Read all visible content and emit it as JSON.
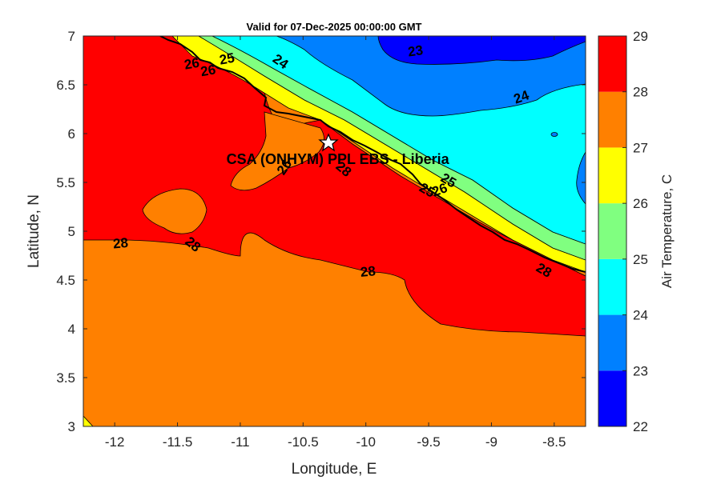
{
  "chart_data": {
    "type": "contour-map",
    "title": "Valid for 07-Dec-2025 00:00:00 GMT",
    "xlabel": "Longitude, E",
    "ylabel": "Latitude, N",
    "xlim": [
      -12.25,
      -8.25
    ],
    "ylim": [
      3,
      7
    ],
    "xticks": [
      -12,
      -11.5,
      -11,
      -10.5,
      -10,
      -9.5,
      -9,
      -8.5
    ],
    "xtick_labels": [
      "-12",
      "-11.5",
      "-11",
      "-10.5",
      "-10",
      "-9.5",
      "-9",
      "-8.5"
    ],
    "yticks": [
      3,
      3.5,
      4,
      4.5,
      5,
      5.5,
      6,
      6.5,
      7
    ],
    "ytick_labels": [
      "3",
      "3.5",
      "4",
      "4.5",
      "5",
      "5.5",
      "6",
      "6.5",
      "7"
    ],
    "colorbar": {
      "label": "Air Temperature, C",
      "levels": [
        22,
        23,
        24,
        25,
        26,
        27,
        28,
        29
      ],
      "level_labels": [
        "22",
        "23",
        "24",
        "25",
        "26",
        "27",
        "28",
        "29"
      ],
      "colors": [
        "#0000ff",
        "#0080ff",
        "#00ffff",
        "#80ff80",
        "#ffff00",
        "#ff8000",
        "#ff0000",
        "#800000"
      ]
    },
    "contour_labels": [
      {
        "text": "23",
        "lon": -9.6,
        "lat": 6.85,
        "angle": -8
      },
      {
        "text": "24",
        "lon": -10.7,
        "lat": 6.75,
        "angle": 35
      },
      {
        "text": "24",
        "lon": -8.75,
        "lat": 6.38,
        "angle": -20
      },
      {
        "text": "25",
        "lon": -11.1,
        "lat": 6.77,
        "angle": -10
      },
      {
        "text": "26",
        "lon": -11.25,
        "lat": 6.65,
        "angle": -10
      },
      {
        "text": "26",
        "lon": -11.38,
        "lat": 6.72,
        "angle": -10
      },
      {
        "text": "25",
        "lon": -9.36,
        "lat": 5.53,
        "angle": 30
      },
      {
        "text": "26",
        "lon": -9.4,
        "lat": 5.43,
        "angle": -20
      },
      {
        "text": "25",
        "lon": -9.53,
        "lat": 5.43,
        "angle": 30
      },
      {
        "text": "28",
        "lon": -11.95,
        "lat": 4.88,
        "angle": -5
      },
      {
        "text": "28",
        "lon": -11.4,
        "lat": 4.88,
        "angle": 40
      },
      {
        "text": "26",
        "lon": -10.62,
        "lat": 5.68,
        "angle": -55
      },
      {
        "text": "28",
        "lon": -10.2,
        "lat": 5.65,
        "angle": 40
      },
      {
        "text": "28",
        "lon": -9.98,
        "lat": 4.59,
        "angle": -5
      },
      {
        "text": "28",
        "lon": -8.6,
        "lat": 4.61,
        "angle": 30
      }
    ],
    "station": {
      "label": "CSA (ONHYM) PPL EBS  - Liberia",
      "lon": -10.3,
      "lat": 5.91,
      "marker": "star"
    }
  }
}
